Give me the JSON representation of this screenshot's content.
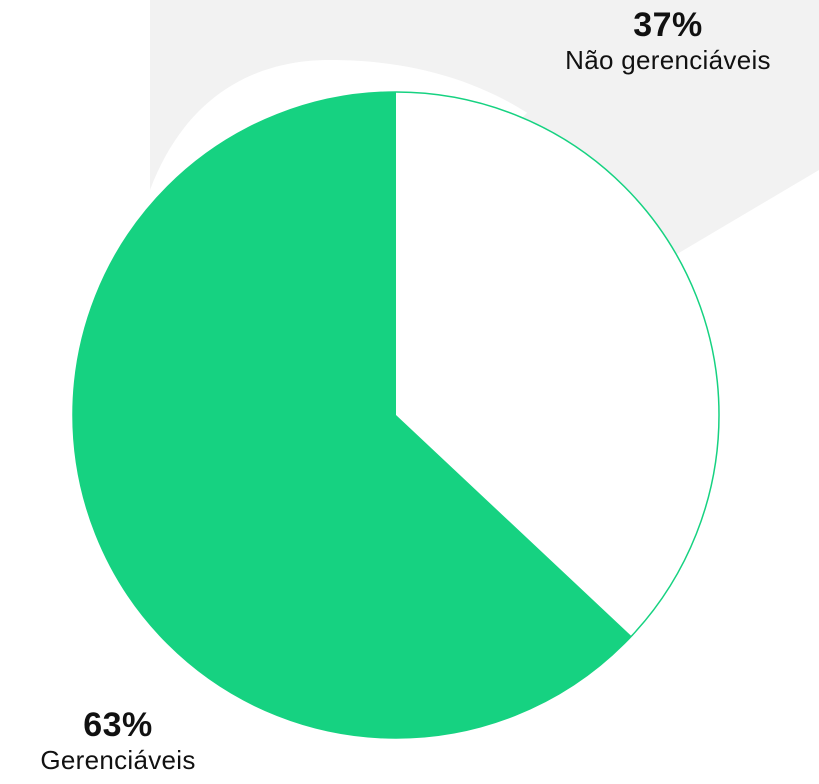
{
  "colors": {
    "slice_fill": "#16d281",
    "empty_fill": "#ffffff",
    "outline": "#16d281",
    "watermark": "#f2f2f2"
  },
  "chart_data": {
    "type": "pie",
    "title": "",
    "slices": [
      {
        "label": "Não gerenciáveis",
        "value": 37,
        "value_label": "37%",
        "color": "#ffffff"
      },
      {
        "label": "Gerenciáveis",
        "value": 63,
        "value_label": "63%",
        "color": "#16d281"
      }
    ],
    "start_angle_deg": 0,
    "direction": "clockwise",
    "legend": "none"
  }
}
